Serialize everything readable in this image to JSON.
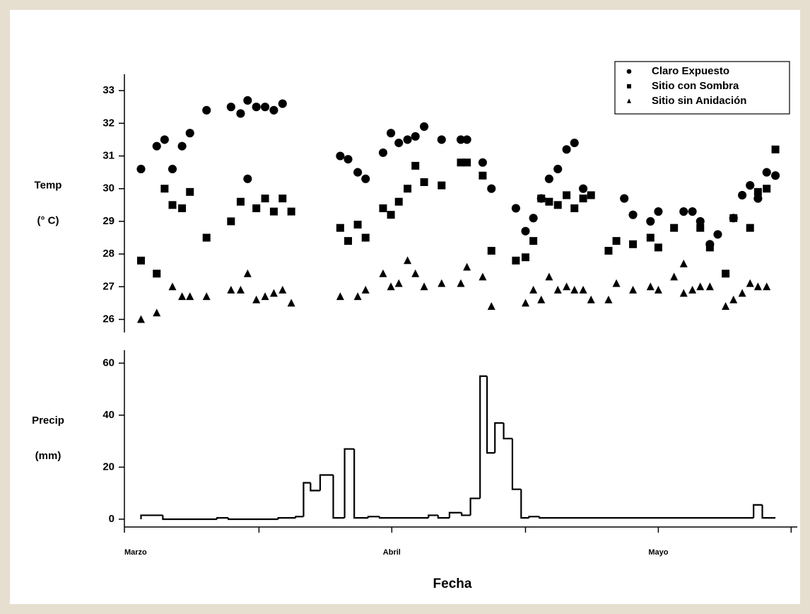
{
  "chart_data": [
    {
      "type": "scatter",
      "y_label": [
        "Temp",
        "(° C)"
      ],
      "xlim": [
        1,
        78
      ],
      "ylim": [
        25.6,
        33.5
      ],
      "yticks": [
        26,
        27,
        28,
        29,
        30,
        31,
        32,
        33
      ],
      "legend": "upper right",
      "series": [
        {
          "name": "Claro Expuesto",
          "marker": "circle",
          "color": "#000000",
          "x": [
            2.9,
            4.7,
            5.6,
            6.5,
            7.6,
            8.5,
            10.4,
            13.2,
            14.3,
            15.1,
            15.1,
            16.1,
            17.1,
            18.1,
            19.1,
            25.7,
            26.6,
            27.7,
            28.6,
            30.6,
            31.5,
            32.4,
            33.4,
            34.3,
            35.3,
            37.3,
            39.5,
            40.2,
            42.0,
            43.0,
            45.8,
            46.9,
            47.8,
            48.7,
            49.6,
            50.6,
            51.6,
            52.5,
            53.5,
            58.2,
            59.2,
            61.2,
            62.1,
            65.0,
            66.0,
            66.9,
            68.0,
            68.9,
            70.7,
            71.7,
            72.6,
            73.5,
            74.5,
            75.5
          ],
          "values": [
            30.6,
            31.3,
            31.5,
            30.6,
            31.3,
            31.7,
            32.4,
            32.5,
            32.3,
            32.7,
            30.3,
            32.5,
            32.5,
            32.4,
            32.6,
            31.0,
            30.9,
            30.5,
            30.3,
            31.1,
            31.7,
            31.4,
            31.5,
            31.6,
            31.9,
            31.5,
            31.5,
            31.5,
            30.8,
            30.0,
            29.4,
            28.7,
            29.1,
            29.7,
            30.3,
            30.6,
            31.2,
            31.4,
            30.0,
            29.7,
            29.2,
            29.0,
            29.3,
            29.3,
            29.3,
            29.0,
            28.3,
            28.6,
            29.1,
            29.8,
            30.1,
            29.7,
            30.5,
            30.4
          ]
        },
        {
          "name": "Sitio con Sombra",
          "marker": "square",
          "color": "#000000",
          "x": [
            2.9,
            4.7,
            5.6,
            6.5,
            7.6,
            8.5,
            10.4,
            13.2,
            14.3,
            16.1,
            17.1,
            18.1,
            19.1,
            20.1,
            25.7,
            26.6,
            27.7,
            28.6,
            30.6,
            31.5,
            32.4,
            33.4,
            34.3,
            35.3,
            37.3,
            39.5,
            40.2,
            42.0,
            43.0,
            45.8,
            46.9,
            47.8,
            48.7,
            49.6,
            50.6,
            51.6,
            52.5,
            53.5,
            54.4,
            56.4,
            57.3,
            59.2,
            61.2,
            62.1,
            63.9,
            66.9,
            68.0,
            69.8,
            70.7,
            72.6,
            73.5,
            74.5,
            75.5
          ],
          "values": [
            27.8,
            27.4,
            30.0,
            29.5,
            29.4,
            29.9,
            28.5,
            29.0,
            29.6,
            29.4,
            29.7,
            29.3,
            29.7,
            29.3,
            28.8,
            28.4,
            28.9,
            28.5,
            29.4,
            29.2,
            29.6,
            30.0,
            30.7,
            30.2,
            30.1,
            30.8,
            30.8,
            30.4,
            28.1,
            27.8,
            27.9,
            28.4,
            29.7,
            29.6,
            29.5,
            29.8,
            29.4,
            29.7,
            29.8,
            28.1,
            28.4,
            28.3,
            28.5,
            28.2,
            28.8,
            28.8,
            28.2,
            27.4,
            29.1,
            28.8,
            29.9,
            30.0,
            31.2
          ]
        },
        {
          "name": "Sitio sin Anidación",
          "marker": "triangle",
          "color": "#000000",
          "x": [
            2.9,
            4.7,
            6.5,
            7.6,
            8.5,
            10.4,
            13.2,
            14.3,
            15.1,
            16.1,
            17.1,
            18.1,
            19.1,
            20.1,
            25.7,
            27.7,
            28.6,
            30.6,
            31.5,
            32.4,
            33.4,
            34.3,
            35.3,
            37.3,
            39.5,
            40.2,
            42.0,
            43.0,
            46.9,
            47.8,
            48.7,
            49.6,
            50.6,
            51.6,
            52.5,
            53.5,
            54.4,
            56.4,
            57.3,
            59.2,
            61.2,
            62.1,
            63.9,
            65.0,
            65.0,
            66.0,
            66.9,
            68.0,
            69.8,
            70.7,
            71.7,
            72.6,
            73.5,
            74.5
          ],
          "values": [
            26.0,
            26.2,
            27.0,
            26.7,
            26.7,
            26.7,
            26.9,
            26.9,
            27.4,
            26.6,
            26.7,
            26.8,
            26.9,
            26.5,
            26.7,
            26.7,
            26.9,
            27.4,
            27.0,
            27.1,
            27.8,
            27.4,
            27.0,
            27.1,
            27.1,
            27.6,
            27.3,
            26.4,
            26.5,
            26.9,
            26.6,
            27.3,
            26.9,
            27.0,
            26.9,
            26.9,
            26.6,
            26.6,
            27.1,
            26.9,
            27.0,
            26.9,
            27.3,
            27.7,
            26.8,
            26.9,
            27.0,
            27.0,
            26.4,
            26.6,
            26.8,
            27.1,
            27.0,
            27.0
          ]
        }
      ]
    },
    {
      "type": "histogram",
      "y_label": [
        "Precip",
        "(mm)"
      ],
      "x_label": "Fecha",
      "xlim": [
        1,
        78
      ],
      "ylim": [
        -3,
        65
      ],
      "yticks": [
        0,
        20,
        40,
        60
      ],
      "xticks": [
        {
          "value": 1,
          "label": "Marzo"
        },
        {
          "value": 31.6,
          "label": "Abril"
        },
        {
          "value": 62.1,
          "label": "Mayo"
        }
      ],
      "xminorticks": [
        16.4,
        46.9,
        77.3
      ],
      "color": "#000000",
      "bins": [
        2.9,
        5.4,
        11.6,
        12.9,
        18.6,
        20.6,
        21.5,
        22.3,
        23.4,
        24.9,
        26.2,
        27.3,
        28.9,
        30.2,
        35.8,
        36.9,
        38.2,
        39.6,
        40.6,
        41.7,
        42.5,
        43.4,
        44.4,
        45.4,
        46.4,
        47.3,
        48.5,
        73.0,
        74.0,
        75.5
      ],
      "values": [
        1.5,
        0,
        0.5,
        0,
        0.5,
        1,
        14,
        11,
        17,
        0.5,
        27,
        0.5,
        1,
        0.5,
        1.5,
        0.5,
        2.5,
        1.5,
        8,
        55,
        25.5,
        37,
        31,
        11.5,
        0.5,
        1,
        0.5,
        5.5,
        0.5
      ]
    }
  ]
}
